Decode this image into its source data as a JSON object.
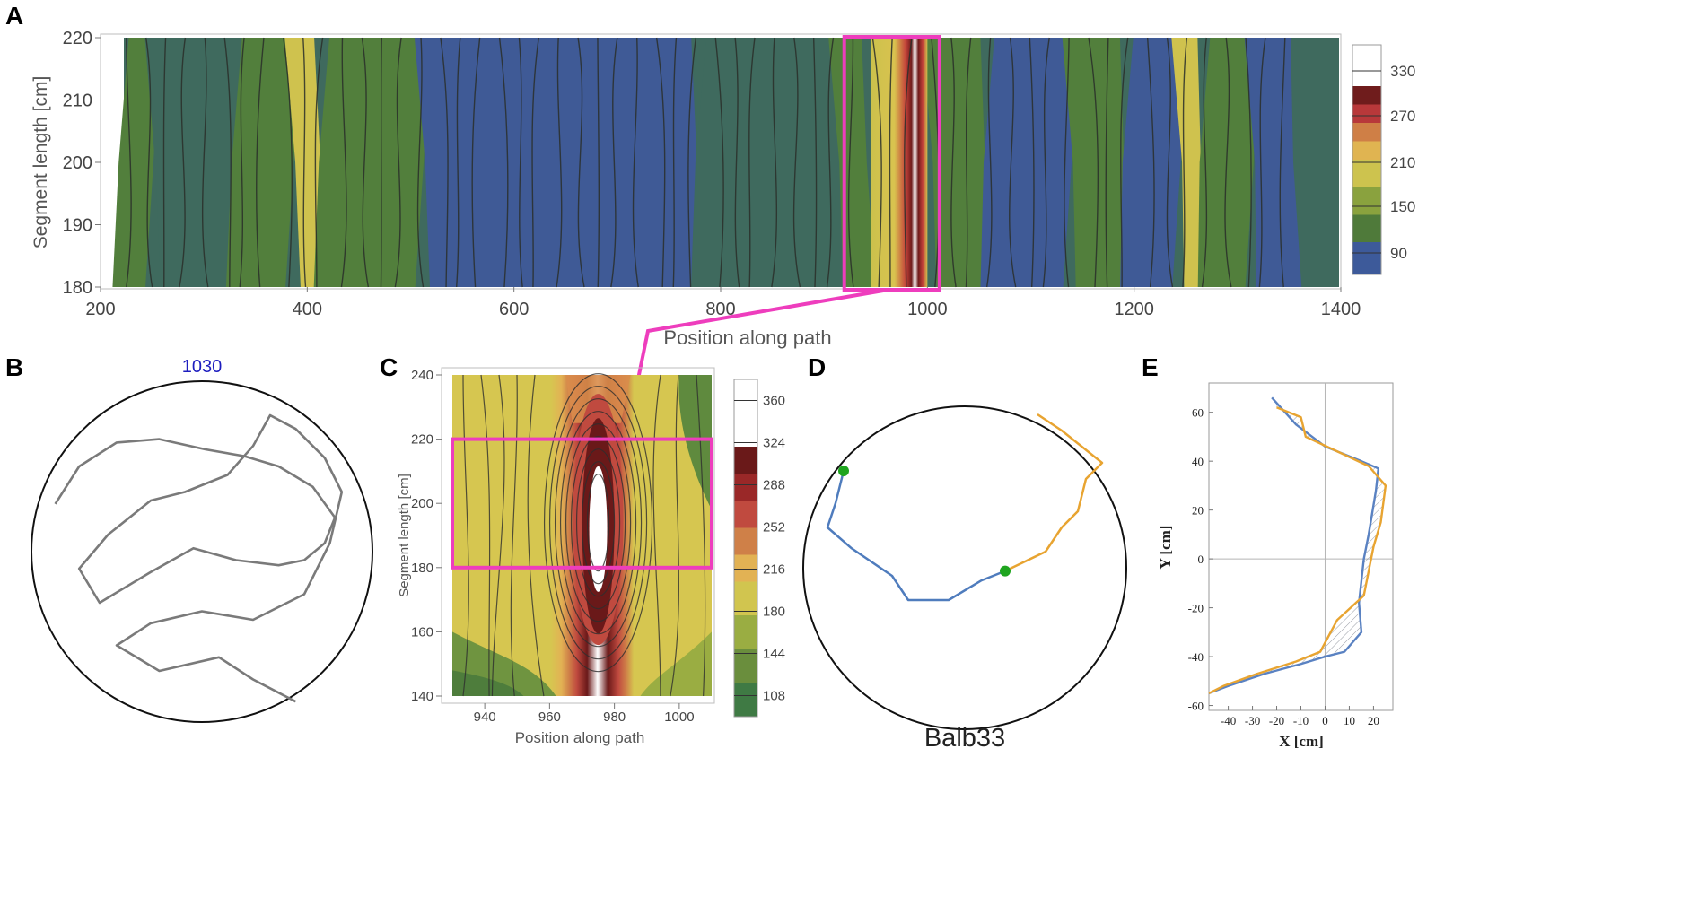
{
  "panels": {
    "A": {
      "label": "A",
      "chart_data": {
        "type": "heatmap",
        "title": "",
        "xlabel": "Position along path",
        "ylabel": "Segment length [cm]",
        "xlim": [
          200,
          1400
        ],
        "ylim": [
          180,
          220
        ],
        "xticks": [
          "200",
          "400",
          "600",
          "800",
          "1000",
          "1200",
          "1400"
        ],
        "yticks": [
          "180",
          "190",
          "200",
          "210",
          "220"
        ],
        "colorbar_ticks": [
          "90",
          "150",
          "210",
          "270",
          "330"
        ],
        "levels": [
          90,
          120,
          150,
          180,
          210,
          240,
          270,
          300,
          330
        ],
        "bands": [
          {
            "x": [
              220,
              250
            ],
            "level": "green"
          },
          {
            "x": [
              250,
              330
            ],
            "level": "teal"
          },
          {
            "x": [
              330,
              385
            ],
            "level": "green"
          },
          {
            "x": [
              385,
              415
            ],
            "level": "yellow"
          },
          {
            "x": [
              415,
              510
            ],
            "level": "green"
          },
          {
            "x": [
              510,
              780
            ],
            "level": "blue"
          },
          {
            "x": [
              780,
              910
            ],
            "level": "teal"
          },
          {
            "x": [
              910,
              945
            ],
            "level": "green"
          },
          {
            "x": [
              945,
              1000
            ],
            "level": "peak"
          },
          {
            "x": [
              1000,
              1060
            ],
            "level": "green"
          },
          {
            "x": [
              1060,
              1135
            ],
            "level": "blue"
          },
          {
            "x": [
              1135,
              1195
            ],
            "level": "green"
          },
          {
            "x": [
              1195,
              1240
            ],
            "level": "blue"
          },
          {
            "x": [
              1240,
              1270
            ],
            "level": "yellow"
          },
          {
            "x": [
              1270,
              1310
            ],
            "level": "green"
          },
          {
            "x": [
              1310,
              1360
            ],
            "level": "blue"
          }
        ],
        "highlight_box": {
          "x": [
            930,
            1010
          ],
          "y": [
            180,
            220
          ]
        }
      }
    },
    "B": {
      "label": "B",
      "title": "1030",
      "chart_data": {
        "type": "line",
        "title": "1030",
        "series": [
          {
            "name": "path",
            "points": [
              [
                -0.86,
                0.28
              ],
              [
                -0.72,
                0.5
              ],
              [
                -0.5,
                0.64
              ],
              [
                -0.25,
                0.66
              ],
              [
                0.02,
                0.6
              ],
              [
                0.25,
                0.56
              ],
              [
                0.45,
                0.5
              ],
              [
                0.65,
                0.38
              ],
              [
                0.78,
                0.2
              ],
              [
                0.72,
                0.05
              ],
              [
                0.6,
                -0.05
              ],
              [
                0.45,
                -0.08
              ],
              [
                0.2,
                -0.05
              ],
              [
                -0.05,
                0.02
              ],
              [
                -0.3,
                -0.12
              ],
              [
                -0.6,
                -0.3
              ],
              [
                -0.72,
                -0.1
              ],
              [
                -0.55,
                0.1
              ],
              [
                -0.3,
                0.3
              ],
              [
                -0.1,
                0.35
              ],
              [
                0.15,
                0.45
              ],
              [
                0.3,
                0.62
              ],
              [
                0.4,
                0.8
              ],
              [
                0.55,
                0.72
              ],
              [
                0.72,
                0.55
              ],
              [
                0.82,
                0.35
              ],
              [
                0.75,
                0.05
              ],
              [
                0.6,
                -0.25
              ],
              [
                0.3,
                -0.4
              ],
              [
                0.0,
                -0.35
              ],
              [
                -0.3,
                -0.42
              ],
              [
                -0.5,
                -0.55
              ],
              [
                -0.25,
                -0.7
              ],
              [
                0.1,
                -0.62
              ],
              [
                0.3,
                -0.75
              ],
              [
                0.55,
                -0.88
              ]
            ]
          }
        ]
      }
    },
    "C": {
      "label": "C",
      "chart_data": {
        "type": "heatmap",
        "title": "",
        "xlabel": "Position along path",
        "ylabel": "Segment length [cm]",
        "xlim": [
          930,
          1010
        ],
        "ylim": [
          140,
          240
        ],
        "xticks": [
          "940",
          "960",
          "980",
          "1000"
        ],
        "yticks": [
          "140",
          "160",
          "180",
          "200",
          "220",
          "240"
        ],
        "colorbar_ticks": [
          "108",
          "144",
          "180",
          "216",
          "252",
          "288",
          "324",
          "360"
        ],
        "levels": [
          108,
          126,
          144,
          162,
          180,
          198,
          216,
          234,
          252,
          270,
          288,
          306,
          324,
          342,
          360
        ],
        "peak": {
          "x": 975,
          "y": 192
        },
        "highlight_box": {
          "x": [
            930,
            1010
          ],
          "y": [
            180,
            220
          ]
        }
      }
    },
    "D": {
      "label": "D",
      "title": "Balb33",
      "chart_data": {
        "type": "line",
        "title": "Balb33",
        "series": [
          {
            "name": "blue",
            "color": "#4f7cbd",
            "points": [
              [
                -0.75,
                0.6
              ],
              [
                -0.8,
                0.4
              ],
              [
                -0.85,
                0.25
              ],
              [
                -0.7,
                0.12
              ],
              [
                -0.45,
                -0.05
              ],
              [
                -0.35,
                -0.2
              ],
              [
                -0.1,
                -0.2
              ],
              [
                0.1,
                -0.08
              ],
              [
                0.25,
                -0.02
              ]
            ]
          },
          {
            "name": "orange",
            "color": "#e8a431",
            "points": [
              [
                0.25,
                -0.02
              ],
              [
                0.5,
                0.1
              ],
              [
                0.6,
                0.25
              ],
              [
                0.7,
                0.35
              ],
              [
                0.75,
                0.55
              ],
              [
                0.85,
                0.65
              ],
              [
                0.6,
                0.85
              ],
              [
                0.45,
                0.95
              ]
            ]
          }
        ],
        "markers": [
          {
            "x": -0.75,
            "y": 0.6
          },
          {
            "x": 0.25,
            "y": -0.02
          }
        ]
      }
    },
    "E": {
      "label": "E",
      "chart_data": {
        "type": "line",
        "title": "",
        "xlabel": "X [cm]",
        "ylabel": "Y [cm]",
        "xlim": [
          -48,
          28
        ],
        "ylim": [
          -62,
          72
        ],
        "xticks": [
          "-40",
          "-30",
          "-20",
          "-10",
          "0",
          "10",
          "20"
        ],
        "yticks": [
          "-60",
          "-40",
          "-20",
          "0",
          "20",
          "40",
          "60"
        ],
        "series": [
          {
            "name": "blue",
            "color": "#5a82c2",
            "points": [
              [
                -22,
                66
              ],
              [
                -12,
                55
              ],
              [
                0,
                46
              ],
              [
                15,
                40
              ],
              [
                22,
                37
              ],
              [
                21,
                28
              ],
              [
                18,
                10
              ],
              [
                16,
                0
              ],
              [
                14,
                -18
              ],
              [
                15,
                -30
              ],
              [
                8,
                -38
              ],
              [
                0,
                -40
              ],
              [
                -10,
                -43
              ],
              [
                -25,
                -47
              ],
              [
                -40,
                -52
              ],
              [
                -48,
                -55
              ]
            ]
          },
          {
            "name": "orange",
            "color": "#e8a431",
            "points": [
              [
                -20,
                62
              ],
              [
                -10,
                58
              ],
              [
                -8,
                50
              ],
              [
                5,
                44
              ],
              [
                18,
                38
              ],
              [
                25,
                30
              ],
              [
                23,
                15
              ],
              [
                20,
                5
              ],
              [
                18,
                -5
              ],
              [
                16,
                -15
              ],
              [
                5,
                -25
              ],
              [
                -2,
                -38
              ],
              [
                -12,
                -42
              ],
              [
                -28,
                -47
              ],
              [
                -42,
                -52
              ],
              [
                -48,
                -55
              ]
            ]
          }
        ]
      }
    }
  },
  "connector_color": "#ee3dbd"
}
